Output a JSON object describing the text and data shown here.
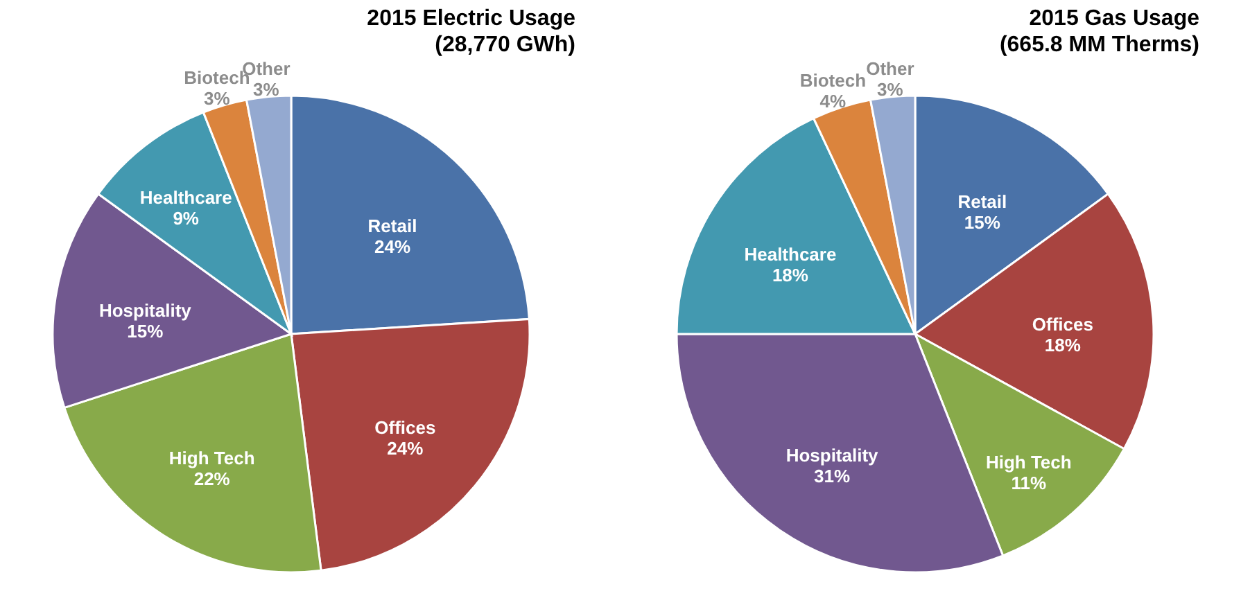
{
  "chart_data": [
    {
      "type": "pie",
      "title": "2015 Electric Usage",
      "subtitle": "(28,770 GWh)",
      "categories": [
        "Retail",
        "Offices",
        "High Tech",
        "Hospitality",
        "Healthcare",
        "Biotech",
        "Other"
      ],
      "values": [
        24,
        24,
        22,
        15,
        9,
        3,
        3
      ],
      "value_labels": [
        "24%",
        "24%",
        "22%",
        "15%",
        "9%",
        "3%",
        "3%"
      ],
      "colors": [
        "#4a72a8",
        "#a84440",
        "#88aa4a",
        "#71588f",
        "#4399b0",
        "#db843d",
        "#94a9d0"
      ],
      "legend": false
    },
    {
      "type": "pie",
      "title": "2015 Gas Usage",
      "subtitle": "(665.8 MM Therms)",
      "categories": [
        "Retail",
        "Offices",
        "High Tech",
        "Hospitality",
        "Healthcare",
        "Biotech",
        "Other"
      ],
      "values": [
        15,
        18,
        11,
        31,
        18,
        4,
        3
      ],
      "value_labels": [
        "15%",
        "18%",
        "11%",
        "31%",
        "18%",
        "4%",
        "3%"
      ],
      "colors": [
        "#4a72a8",
        "#a84440",
        "#88aa4a",
        "#71588f",
        "#4399b0",
        "#db843d",
        "#94a9d0"
      ],
      "legend": false
    }
  ]
}
